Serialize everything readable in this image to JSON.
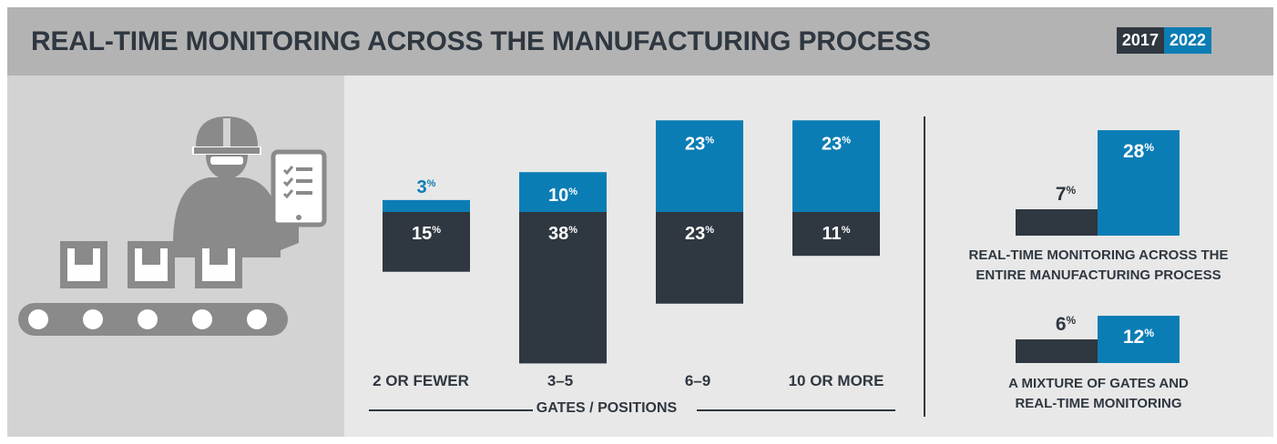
{
  "header": {
    "title": "REAL-TIME MONITORING ACROSS THE MANUFACTURING PROCESS",
    "years": [
      {
        "label": "2017",
        "color": "#2f3740"
      },
      {
        "label": "2022",
        "color": "#0b7db5"
      }
    ]
  },
  "colors": {
    "dark": "#2f3740",
    "blue": "#0b7db5",
    "icon_gray": "#8a8a8a"
  },
  "illustration": {
    "icon_names": [
      "worker-icon",
      "hard-hat-icon",
      "checklist-tablet-icon",
      "box-icon",
      "conveyor-belt-icon"
    ]
  },
  "chart_data": [
    {
      "type": "bar",
      "stacked": true,
      "categories": [
        "2 OR FEWER",
        "3–5",
        "6–9",
        "10 OR MORE"
      ],
      "xlabel": "GATES / POSITIONS",
      "unit": "%",
      "series": [
        {
          "label": "2017",
          "color": "#2f3740",
          "values": [
            15,
            38,
            23,
            11
          ]
        },
        {
          "label": "2022",
          "color": "#0b7db5",
          "values": [
            3,
            10,
            23,
            23
          ]
        }
      ]
    },
    {
      "type": "bar",
      "unit": "%",
      "caption_lines": [
        "REAL-TIME MONITORING ACROSS THE",
        "ENTIRE MANUFACTURING PROCESS"
      ],
      "series": [
        {
          "label": "2017",
          "color": "#2f3740",
          "values": [
            7
          ]
        },
        {
          "label": "2022",
          "color": "#0b7db5",
          "values": [
            28
          ]
        }
      ]
    },
    {
      "type": "bar",
      "unit": "%",
      "caption_lines": [
        "A MIXTURE OF GATES AND",
        "REAL-TIME MONITORING"
      ],
      "series": [
        {
          "label": "2017",
          "color": "#2f3740",
          "values": [
            6
          ]
        },
        {
          "label": "2022",
          "color": "#0b7db5",
          "values": [
            12
          ]
        }
      ]
    }
  ]
}
